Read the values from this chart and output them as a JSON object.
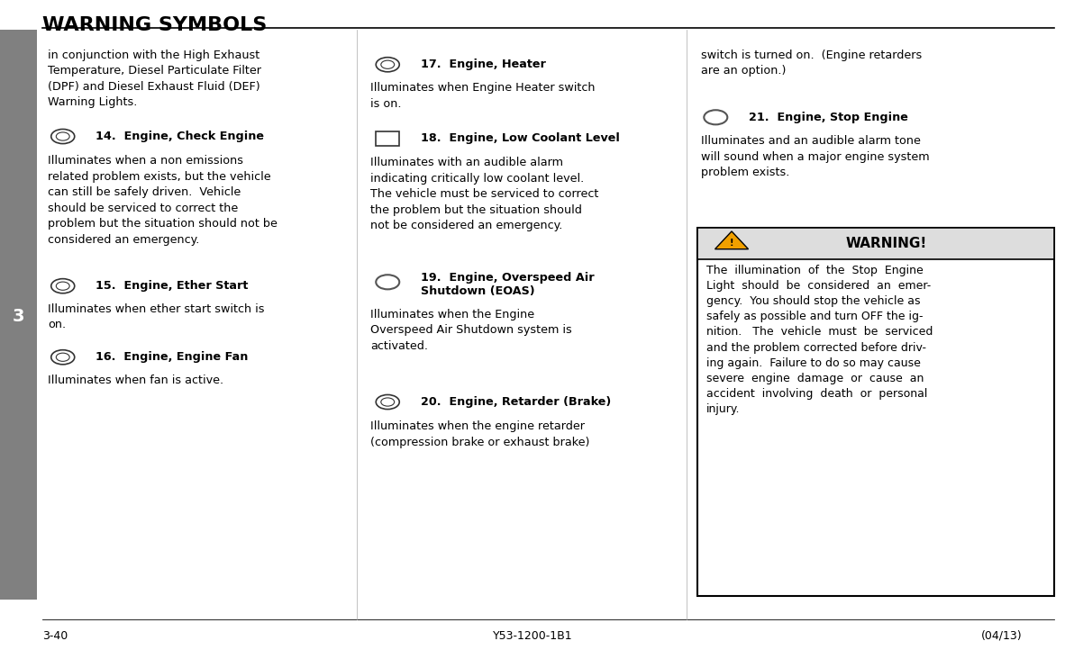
{
  "title": "WARNING SYMBOLS",
  "bg_color": "#ffffff",
  "title_color": "#000000",
  "sidebar_color": "#808080",
  "sidebar_number": "3",
  "footer_left": "3-40",
  "footer_center": "Y53-1200-1B1",
  "footer_right": "(04/13)",
  "warning_header": "WARNING!",
  "warning_text": "The  illumination  of  the  Stop  Engine\nLight  should  be  considered  an  emer-\ngency.  You should stop the vehicle as\nsafely as possible and turn OFF the ig-\nnition.   The  vehicle  must  be  serviced\nand the problem corrected before driv-\ning again.  Failure to do so may cause\nsevere  engine  damage  or  cause  an\naccident  involving  death  or  personal\ninjury."
}
